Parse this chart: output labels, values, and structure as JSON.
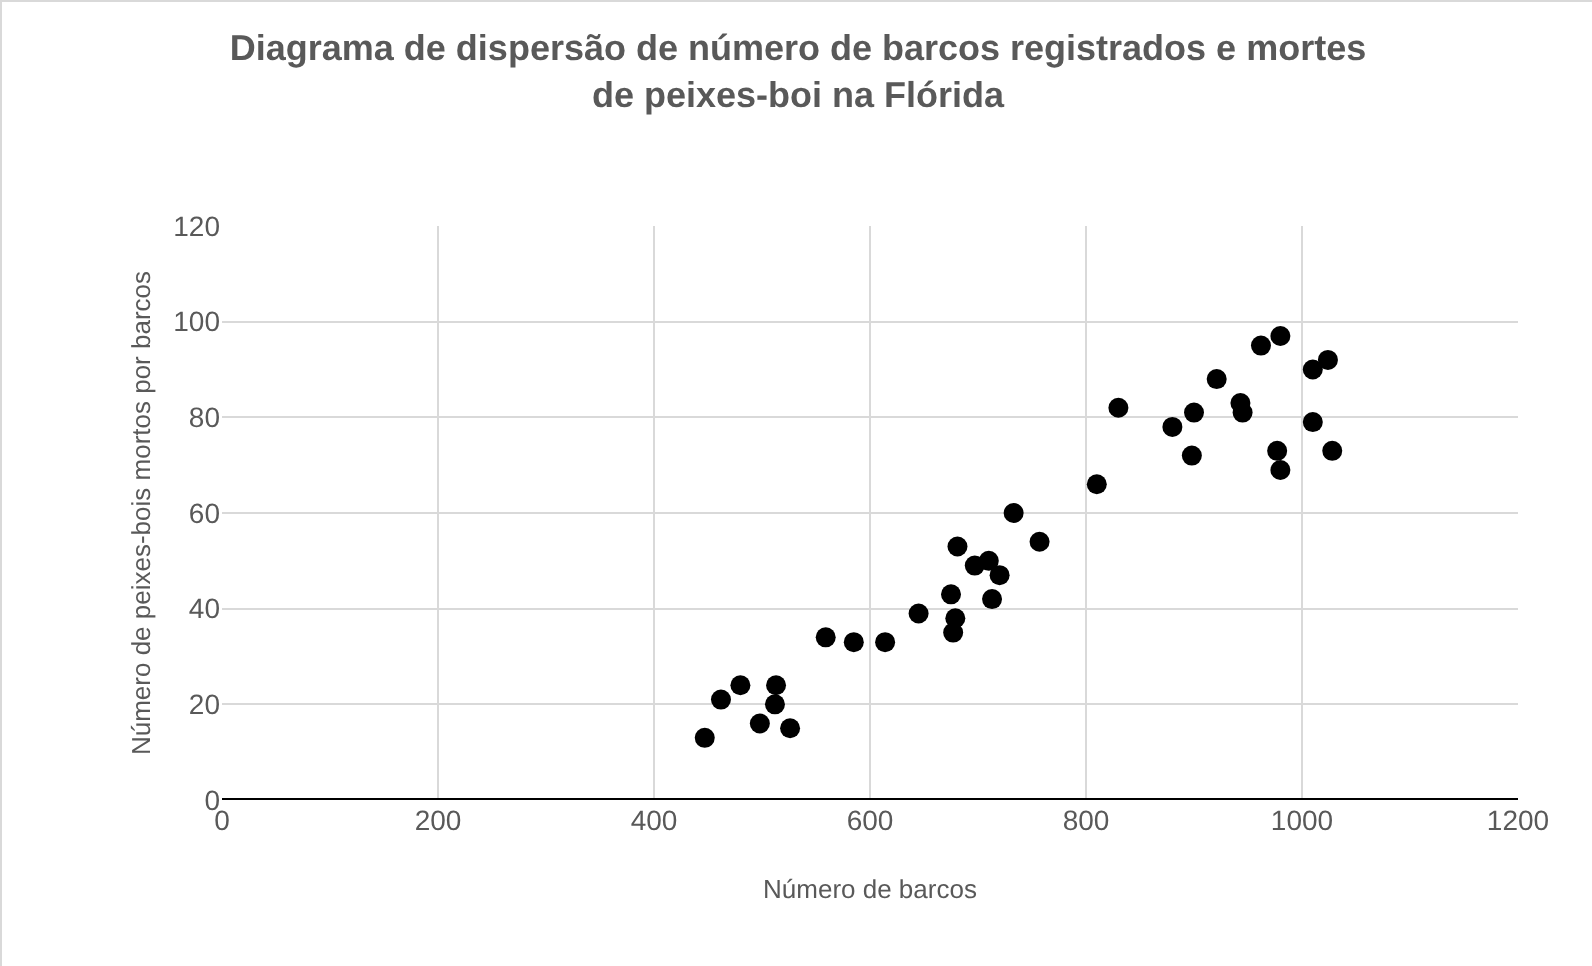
{
  "chart_data": {
    "type": "scatter",
    "title": "Diagrama de dispersão de número de barcos registrados e mortes de peixes-boi na Flórida",
    "xlabel": "Número de barcos",
    "ylabel": "Número de peixes-bois mortos por barcos",
    "x": [
      447,
      462,
      480,
      498,
      512,
      513,
      526,
      559,
      585,
      614,
      645,
      675,
      677,
      679,
      681,
      697,
      710,
      713,
      720,
      733,
      757,
      810,
      830,
      880,
      898,
      900,
      921,
      943,
      945,
      962,
      980,
      977,
      980,
      1010,
      1010,
      1024,
      1028
    ],
    "series": [
      {
        "color": "#000000",
        "values": [
          13,
          21,
          24,
          16,
          20,
          24,
          15,
          34,
          33,
          33,
          39,
          43,
          35,
          38,
          53,
          49,
          50,
          42,
          47,
          60,
          54,
          66,
          82,
          78,
          72,
          81,
          88,
          83,
          81,
          95,
          97,
          73,
          69,
          79,
          90,
          92,
          73
        ]
      }
    ],
    "xlim": [
      0,
      1200
    ],
    "xticks": [
      0,
      200,
      400,
      600,
      800,
      1000,
      1200
    ],
    "ylim": [
      0,
      120
    ],
    "yticks": [
      0,
      20,
      40,
      60,
      80,
      100,
      120
    ],
    "grid": true,
    "marker": "circle"
  }
}
